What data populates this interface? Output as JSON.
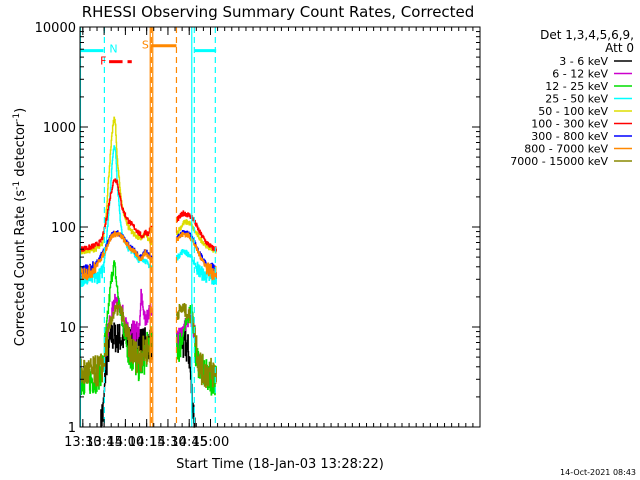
{
  "chart_data": {
    "type": "line",
    "title": "RHESSI Observing Summary Count Rates, Corrected",
    "xlabel": "Start Time (18-Jan-03 13:28:22)",
    "ylabel": "Corrected Count Rate (s",
    "ylabel_sup1": "-1",
    "ylabel_mid": " detector",
    "ylabel_sup2": "-1",
    "ylabel_end": ")",
    "timestamp": "14-Oct-2021 08:43",
    "x_range_min": [
      808,
      1090
    ],
    "y_log": true,
    "y_range": [
      1,
      10000
    ],
    "x_ticks": [
      {
        "min": 810,
        "label": "13:30"
      },
      {
        "min": 825,
        "label": "13:45"
      },
      {
        "min": 840,
        "label": "14:00"
      },
      {
        "min": 855,
        "label": "14:15"
      },
      {
        "min": 870,
        "label": "14:30"
      },
      {
        "min": 885,
        "label": "14:45"
      },
      {
        "min": 900,
        "label": "15:00"
      }
    ],
    "y_ticks": [
      {
        "value": 1,
        "label": "1"
      },
      {
        "value": 10,
        "label": "10"
      },
      {
        "value": 100,
        "label": "100"
      },
      {
        "value": 1000,
        "label": "1000"
      },
      {
        "value": 10000,
        "label": "10000"
      }
    ],
    "legend": {
      "placement": "right",
      "header1": "Det 1,3,4,5,6,9,",
      "header2": "Att 0"
    },
    "data_gap_min": [
      858.5,
      876
    ],
    "series": [
      {
        "name": "3 - 6 keV",
        "color": "#000000",
        "x": [
          822.5,
          823.5,
          824,
          825,
          826,
          828,
          830,
          878,
          879,
          880,
          881,
          882,
          883,
          884,
          885,
          886,
          887,
          888,
          889
        ],
        "y": [
          1,
          1.4,
          1.3,
          2,
          4,
          6,
          8,
          6,
          7,
          7,
          6,
          7,
          6,
          6,
          5,
          3,
          2,
          1.4,
          1
        ]
      },
      {
        "name": "6 - 12 keV",
        "color": "#cc00cc",
        "x": [
          826,
          828,
          830,
          832,
          834,
          836,
          838,
          840,
          842,
          844,
          846,
          848,
          850,
          851,
          852,
          853,
          854,
          856,
          858,
          877,
          879,
          881,
          883,
          885,
          887,
          889
        ],
        "y": [
          7,
          10,
          14,
          18,
          18,
          16,
          14,
          11,
          9,
          8,
          8,
          8,
          10,
          21,
          17,
          14,
          11,
          14,
          15,
          8,
          9,
          10,
          11,
          12,
          11,
          8
        ]
      },
      {
        "name": "12 - 25 keV",
        "color": "#00dd00",
        "x": [
          808,
          816,
          820,
          824,
          826,
          828,
          830,
          832,
          834,
          836,
          838,
          840,
          842,
          844,
          850,
          854,
          856,
          858,
          877,
          879,
          881,
          883,
          885,
          886,
          887,
          888,
          890,
          895,
          900,
          904
        ],
        "y": [
          3,
          3,
          3.2,
          4,
          8,
          16,
          30,
          45,
          25,
          15,
          10,
          8,
          6,
          5,
          4,
          5,
          7,
          7,
          6,
          7,
          9,
          11,
          14,
          16,
          15,
          9,
          5,
          3.5,
          3,
          3
        ]
      },
      {
        "name": "25 - 50 keV",
        "color": "#00ffff",
        "x": [
          808,
          814,
          818,
          822,
          824,
          826,
          828,
          830,
          831,
          832,
          833,
          834,
          836,
          838,
          840,
          842,
          844,
          846,
          848,
          850,
          852,
          854,
          856,
          858,
          877,
          879,
          881,
          883,
          885,
          887,
          889,
          893,
          897,
          901,
          904
        ],
        "y": [
          30,
          30,
          31,
          33,
          37,
          60,
          130,
          320,
          520,
          650,
          600,
          300,
          130,
          80,
          70,
          60,
          58,
          55,
          50,
          45,
          48,
          46,
          42,
          40,
          50,
          55,
          58,
          55,
          52,
          48,
          42,
          35,
          32,
          30,
          30
        ]
      },
      {
        "name": "50 - 100 keV",
        "color": "#dddd00",
        "x": [
          808,
          814,
          818,
          822,
          824,
          826,
          828,
          830,
          831,
          832,
          833,
          834,
          836,
          838,
          840,
          842,
          846,
          850,
          852,
          854,
          856,
          858,
          877,
          879,
          881,
          883,
          885,
          887,
          889,
          893,
          897,
          901,
          904
        ],
        "y": [
          57,
          58,
          60,
          63,
          70,
          120,
          300,
          700,
          1000,
          1200,
          1050,
          500,
          250,
          150,
          120,
          100,
          85,
          75,
          80,
          85,
          75,
          70,
          90,
          100,
          110,
          112,
          110,
          100,
          90,
          75,
          65,
          60,
          58
        ]
      },
      {
        "name": "100 - 300 keV",
        "color": "#ff0000",
        "x": [
          808,
          814,
          818,
          822,
          824,
          826,
          828,
          830,
          832,
          834,
          836,
          838,
          840,
          842,
          846,
          850,
          852,
          854,
          856,
          858,
          877,
          879,
          881,
          883,
          885,
          887,
          889,
          893,
          897,
          901,
          904
        ],
        "y": [
          60,
          62,
          65,
          70,
          80,
          110,
          160,
          230,
          300,
          290,
          200,
          150,
          130,
          115,
          100,
          85,
          80,
          90,
          85,
          100,
          120,
          130,
          138,
          135,
          130,
          125,
          110,
          85,
          70,
          62,
          60
        ]
      },
      {
        "name": "300 - 800 keV",
        "color": "#0000ff",
        "x": [
          808,
          814,
          818,
          822,
          824,
          826,
          828,
          830,
          832,
          834,
          836,
          838,
          840,
          844,
          848,
          850,
          852,
          854,
          856,
          858,
          877,
          879,
          881,
          883,
          885,
          887,
          889,
          893,
          897,
          901,
          904
        ],
        "y": [
          35,
          36,
          40,
          50,
          55,
          62,
          72,
          82,
          87,
          87,
          85,
          80,
          72,
          62,
          55,
          50,
          52,
          58,
          53,
          48,
          80,
          85,
          88,
          87,
          84,
          78,
          68,
          52,
          42,
          37,
          35
        ]
      },
      {
        "name": "800 - 7000 keV",
        "color": "#ff8800",
        "x": [
          808,
          814,
          818,
          822,
          824,
          826,
          828,
          830,
          832,
          834,
          836,
          838,
          840,
          844,
          848,
          850,
          852,
          854,
          856,
          858,
          877,
          879,
          881,
          883,
          885,
          887,
          889,
          893,
          897,
          901,
          904
        ],
        "y": [
          34,
          35,
          38,
          47,
          52,
          60,
          70,
          80,
          85,
          85,
          83,
          78,
          70,
          60,
          53,
          48,
          50,
          56,
          51,
          46,
          78,
          82,
          85,
          84,
          81,
          75,
          65,
          50,
          40,
          35,
          34
        ]
      },
      {
        "name": "7000 - 15000 keV",
        "color": "#888800",
        "x": [
          808,
          816,
          820,
          824,
          826,
          828,
          830,
          832,
          834,
          836,
          838,
          840,
          842,
          844,
          846,
          848,
          850,
          852,
          854,
          856,
          858,
          877,
          879,
          881,
          883,
          885,
          887,
          889,
          891,
          893,
          895,
          900,
          904
        ],
        "y": [
          3.5,
          3.5,
          3.6,
          4,
          6,
          9,
          12,
          14,
          15,
          15,
          13,
          9,
          7,
          6,
          5.5,
          5,
          5,
          5.5,
          6,
          6,
          6,
          14,
          15,
          15,
          14,
          13,
          12,
          9,
          5,
          4,
          3.5,
          3.5,
          3.5
        ]
      }
    ],
    "flag_bars": [
      {
        "label": "N",
        "color": "#00ffff",
        "segments_min": [
          [
            808,
            824.5
          ],
          [
            889,
            904
          ]
        ],
        "level": 5800
      },
      {
        "label": "F",
        "color": "#ff0000",
        "segments_min": [
          [
            828.5,
            838
          ],
          [
            841.5,
            844.5
          ]
        ],
        "level": 4500
      },
      {
        "label": "S",
        "color": "#ff8800",
        "segments_min": [
          [
            858,
            876
          ]
        ],
        "level": 6500
      }
    ],
    "vlines": [
      {
        "min": 808.3,
        "color": "#00ffff",
        "style": "solid"
      },
      {
        "min": 825.2,
        "color": "#00ffff",
        "style": "dashed"
      },
      {
        "min": 857.5,
        "color": "#ff8800",
        "style": "solid"
      },
      {
        "min": 858.3,
        "color": "#ff8800",
        "style": "dashed"
      },
      {
        "min": 859.3,
        "color": "#ff8800",
        "style": "solid"
      },
      {
        "min": 876,
        "color": "#ff8800",
        "style": "dashed"
      },
      {
        "min": 886.8,
        "color": "#00ffff",
        "style": "solid"
      },
      {
        "min": 888.6,
        "color": "#00ffff",
        "style": "dashed"
      },
      {
        "min": 903.4,
        "color": "#00ffff",
        "style": "dashed"
      }
    ]
  }
}
